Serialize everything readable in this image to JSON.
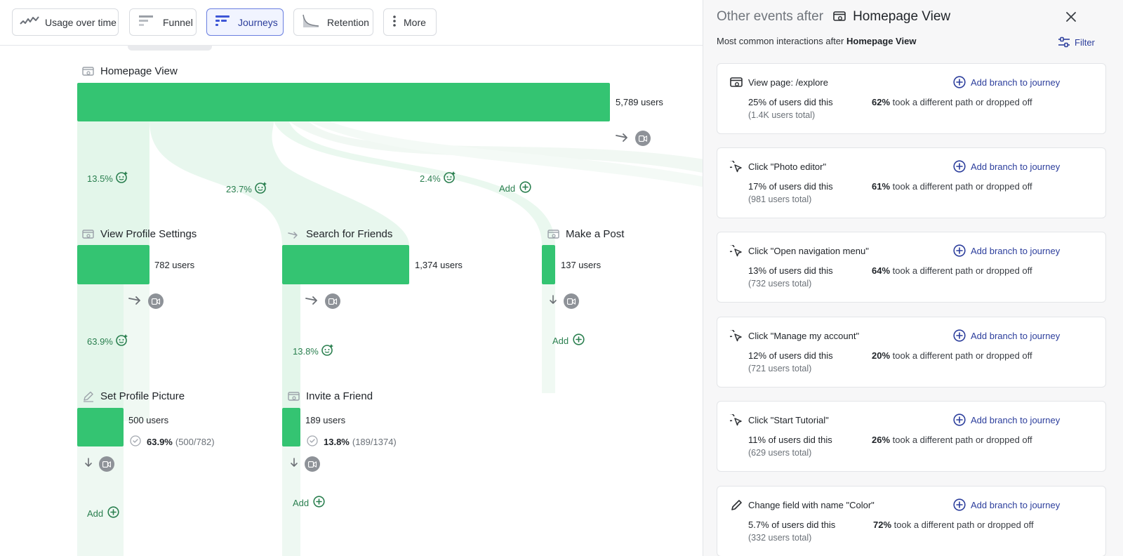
{
  "toolbar": {
    "buttons": [
      {
        "label": "Usage over time",
        "icon": "usage-line-icon"
      },
      {
        "label": "Funnel",
        "icon": "funnel-icon"
      },
      {
        "label": "Journeys",
        "icon": "journeys-icon",
        "active": true
      },
      {
        "label": "Retention",
        "icon": "retention-curve-icon"
      },
      {
        "label": "More",
        "icon": "vertical-dots-icon"
      }
    ]
  },
  "journey": {
    "root": {
      "name": "Homepage View",
      "users": "5,789 users"
    },
    "branches": [
      {
        "pct": "13.5%"
      },
      {
        "pct": "23.7%"
      },
      {
        "pct": "2.4%"
      }
    ],
    "add_label": "Add",
    "steps": [
      {
        "name": "View Profile Settings",
        "users": "782 users"
      },
      {
        "name": "Search for Friends",
        "users": "1,374 users"
      },
      {
        "name": "Make a Post",
        "users": "137 users"
      }
    ],
    "sub_branches": [
      {
        "pct": "63.9%"
      },
      {
        "pct": "13.8%"
      }
    ],
    "leaves": [
      {
        "name": "Set Profile Picture",
        "users": "500 users",
        "conv_pct": "63.9%",
        "conv_ratio": "(500/782)"
      },
      {
        "name": "Invite a Friend",
        "users": "189 users",
        "conv_pct": "13.8%",
        "conv_ratio": "(189/1374)"
      }
    ]
  },
  "panel": {
    "title_prefix": "Other events after",
    "title_event": "Homepage View",
    "subtitle_prefix": "Most common interactions after",
    "subtitle_event": "Homepage View",
    "filter_label": "Filter",
    "add_branch_label": "Add branch to journey",
    "events": [
      {
        "name": "View page: /explore",
        "icon": "page-view-icon",
        "pct": "25% of users did this",
        "total": "(1.4K users total)",
        "drop_pct": "62%",
        "drop_text": "took a different path or dropped off"
      },
      {
        "name": "Click \"Photo editor\"",
        "icon": "click-cursor-icon",
        "pct": "17% of users did this",
        "total": "(981 users total)",
        "drop_pct": "61%",
        "drop_text": "took a different path or dropped off"
      },
      {
        "name": "Click \"Open navigation menu\"",
        "icon": "click-cursor-icon",
        "pct": "13% of users did this",
        "total": "(732 users total)",
        "drop_pct": "64%",
        "drop_text": "took a different path or dropped off"
      },
      {
        "name": "Click \"Manage my account\"",
        "icon": "click-cursor-icon",
        "pct": "12% of users did this",
        "total": "(721 users total)",
        "drop_pct": "20%",
        "drop_text": "took a different path or dropped off"
      },
      {
        "name": "Click \"Start Tutorial\"",
        "icon": "click-cursor-icon",
        "pct": "11% of users did this",
        "total": "(629 users total)",
        "drop_pct": "26%",
        "drop_text": "took a different path or dropped off"
      },
      {
        "name": "Change field with name \"Color\"",
        "icon": "pencil-icon",
        "pct": "5.7% of users did this",
        "total": "(332 users total)",
        "drop_pct": "72%",
        "drop_text": "took a different path or dropped off"
      }
    ]
  },
  "colors": {
    "bar": "#34c472",
    "flow": "#e3f6ea",
    "accent": "#2c3e9c",
    "pct_text": "#2a7f4f"
  }
}
